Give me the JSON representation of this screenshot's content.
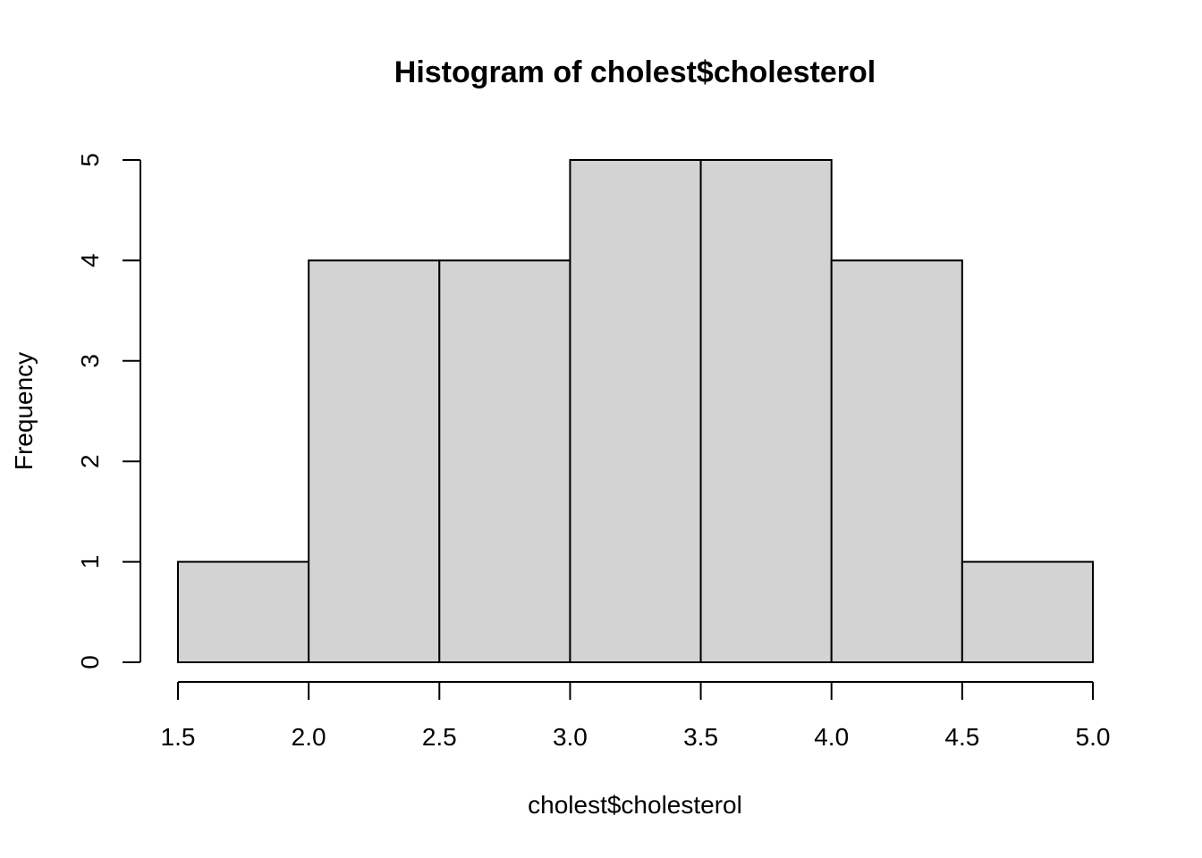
{
  "chart_data": {
    "type": "bar",
    "title": "Histogram of cholest$cholesterol",
    "xlabel": "cholest$cholesterol",
    "ylabel": "Frequency",
    "bins": [
      {
        "start": 1.5,
        "end": 2.0,
        "count": 1
      },
      {
        "start": 2.0,
        "end": 2.5,
        "count": 4
      },
      {
        "start": 2.5,
        "end": 3.0,
        "count": 4
      },
      {
        "start": 3.0,
        "end": 3.5,
        "count": 5
      },
      {
        "start": 3.5,
        "end": 4.0,
        "count": 5
      },
      {
        "start": 4.0,
        "end": 4.5,
        "count": 4
      },
      {
        "start": 4.5,
        "end": 5.0,
        "count": 1
      }
    ],
    "xlim": [
      1.5,
      5.0
    ],
    "ylim": [
      0,
      5
    ],
    "x_ticks": [
      "1.5",
      "2.0",
      "2.5",
      "3.0",
      "3.5",
      "4.0",
      "4.5",
      "5.0"
    ],
    "y_ticks": [
      "0",
      "1",
      "2",
      "3",
      "4",
      "5"
    ],
    "grid": false,
    "colors": {
      "bar_fill": "#d3d3d3",
      "bar_stroke": "#000000"
    }
  }
}
